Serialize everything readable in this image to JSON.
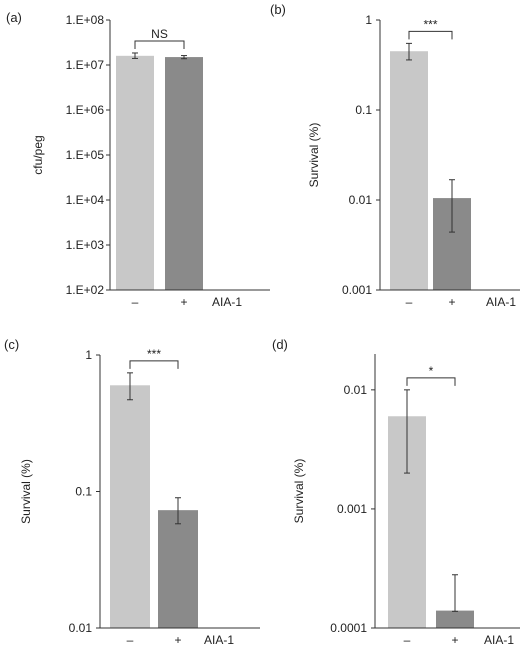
{
  "chart_data": [
    {
      "panel_label": "(a)",
      "type": "bar",
      "yscale": "log",
      "ylabel": "cfu/peg",
      "ylim": [
        100,
        100000000
      ],
      "yticks": [
        100,
        1000,
        10000,
        100000,
        1000000,
        10000000,
        100000000
      ],
      "ytick_labels": [
        "1.E+02",
        "1.E+03",
        "1.E+04",
        "1.E+05",
        "1.E+06",
        "1.E+07",
        "1.E+08"
      ],
      "categories": [
        "–",
        "+"
      ],
      "group_label": "AIA-1",
      "values": [
        16000000,
        15000000
      ],
      "err_low": [
        14000000,
        13800000
      ],
      "err_high": [
        18500000,
        16200000
      ],
      "colors": [
        "#c8c8c8",
        "#8a8a8a"
      ],
      "significance": "NS"
    },
    {
      "panel_label": "(b)",
      "type": "bar",
      "yscale": "log",
      "ylabel": "Survival (%)",
      "ylim": [
        0.001,
        1
      ],
      "yticks": [
        0.001,
        0.01,
        0.1,
        1
      ],
      "ytick_labels": [
        "0.001",
        "0.01",
        "0.1",
        "1"
      ],
      "categories": [
        "–",
        "+"
      ],
      "group_label": "AIA-1",
      "values": [
        0.45,
        0.0105
      ],
      "err_low": [
        0.36,
        0.0044
      ],
      "err_high": [
        0.55,
        0.0168
      ],
      "colors": [
        "#c8c8c8",
        "#8a8a8a"
      ],
      "significance": "***"
    },
    {
      "panel_label": "(c)",
      "type": "bar",
      "yscale": "log",
      "ylabel": "Survival (%)",
      "ylim": [
        0.01,
        1
      ],
      "yticks": [
        0.01,
        0.1,
        1
      ],
      "ytick_labels": [
        "0.01",
        "0.1",
        "1"
      ],
      "categories": [
        "–",
        "+"
      ],
      "group_label": "AIA-1",
      "values": [
        0.6,
        0.073
      ],
      "err_low": [
        0.47,
        0.058
      ],
      "err_high": [
        0.74,
        0.09
      ],
      "colors": [
        "#c8c8c8",
        "#8a8a8a"
      ],
      "significance": "***"
    },
    {
      "panel_label": "(d)",
      "type": "bar",
      "yscale": "log",
      "ylabel": "Survival (%)",
      "ylim": [
        0.0001,
        0.02
      ],
      "yticks": [
        0.0001,
        0.001,
        0.01
      ],
      "ytick_labels": [
        "0.0001",
        "0.001",
        "0.01"
      ],
      "categories": [
        "–",
        "+"
      ],
      "group_label": "AIA-1",
      "values": [
        0.006,
        0.00014
      ],
      "err_low": [
        0.002,
        0.000138
      ],
      "err_high": [
        0.01,
        0.00028
      ],
      "colors": [
        "#c8c8c8",
        "#8a8a8a"
      ],
      "significance": "*"
    }
  ]
}
